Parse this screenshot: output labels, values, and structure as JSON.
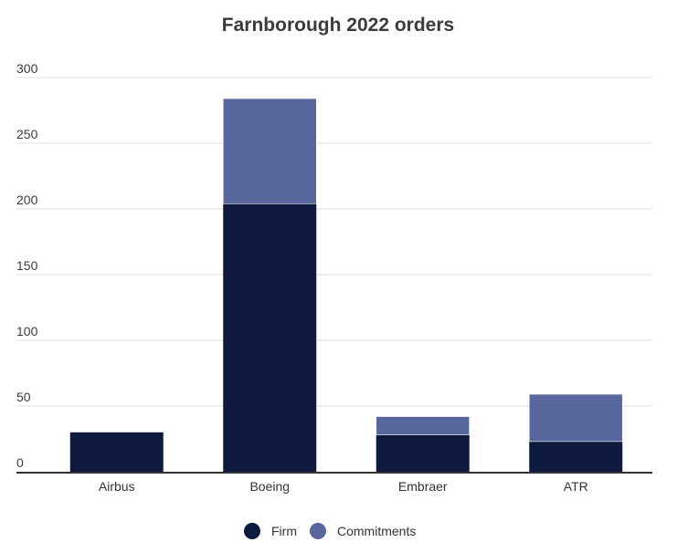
{
  "chart_data": {
    "type": "bar",
    "stacked": true,
    "title": "Farnborough 2022 orders",
    "xlabel": "",
    "ylabel": "",
    "categories": [
      "Airbus",
      "Boeing",
      "Embraer",
      "ATR"
    ],
    "series": [
      {
        "name": "Firm",
        "color": "#0d1a3e",
        "values": [
          30,
          204,
          28,
          23
        ]
      },
      {
        "name": "Commitments",
        "color": "#57679d",
        "values": [
          0,
          80,
          14,
          36
        ]
      }
    ],
    "ylim": [
      0,
      300
    ],
    "yticks": [
      "0",
      "50",
      "100",
      "150",
      "200",
      "250",
      "300"
    ],
    "ytick_values": [
      0,
      50,
      100,
      150,
      200,
      250,
      300
    ],
    "grid": true,
    "legend": "bottom-center",
    "colors": {
      "axis": "#333333",
      "grid": "#dddddd"
    }
  }
}
